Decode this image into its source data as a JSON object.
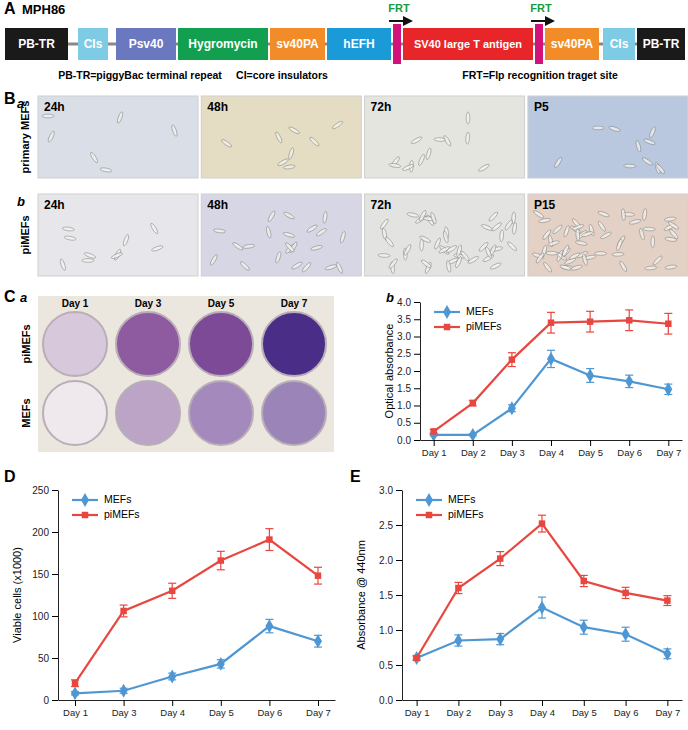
{
  "panel_labels": {
    "A": "A",
    "B": "B",
    "Ba": "a",
    "Bb": "b",
    "C": "C",
    "Ca": "a",
    "Cb": "b",
    "D": "D",
    "E": "E"
  },
  "construct": {
    "name": "MPH86",
    "elements": [
      {
        "type": "box",
        "label": "PB-TR",
        "color": "#1a1a1a"
      },
      {
        "type": "box",
        "label": "CIs",
        "color": "#7ecbe6"
      },
      {
        "type": "box",
        "label": "Psv40",
        "color": "#6a78c0"
      },
      {
        "type": "box",
        "label": "Hygromycin",
        "color": "#12a050"
      },
      {
        "type": "box",
        "label": "sv40PA",
        "color": "#f28c28"
      },
      {
        "type": "box",
        "label": "hEFH",
        "color": "#1a9ad6"
      },
      {
        "type": "site",
        "label": "FRT",
        "color": "#d1127a"
      },
      {
        "type": "box",
        "label": "SV40 large T antigen",
        "color": "#e8262a"
      },
      {
        "type": "site",
        "label": "FRT",
        "color": "#d1127a"
      },
      {
        "type": "box",
        "label": "sv40PA",
        "color": "#f28c28"
      },
      {
        "type": "box",
        "label": "CIs",
        "color": "#7ecbe6"
      },
      {
        "type": "box",
        "label": "PB-TR",
        "color": "#1a1a1a"
      }
    ],
    "notes": [
      "PB-TR=piggyBac terminal repeat",
      "CI=core insulators",
      "FRT=Flp recognition traget site"
    ]
  },
  "micrographs": {
    "rows": [
      {
        "label": "primary MEFs",
        "frames": [
          "24h",
          "48h",
          "72h",
          "P5"
        ],
        "colors": [
          "#d9dee7",
          "#e4ddc4",
          "#e5e5df",
          "#b9c8de"
        ]
      },
      {
        "label": "piMEFs",
        "frames": [
          "24h",
          "48h",
          "72h",
          "P15"
        ],
        "colors": [
          "#e7e7eb",
          "#d7d6e4",
          "#e3e3e1",
          "#e3d1c6"
        ]
      }
    ]
  },
  "plates": {
    "rows": [
      "piMEFs",
      "MEFs"
    ],
    "columns": [
      "Day 1",
      "Day 3",
      "Day 5",
      "Day 7"
    ],
    "colors": [
      [
        "#d8c8dc",
        "#8e5aa0",
        "#7c4a96",
        "#4a2d86"
      ],
      [
        "#efe9ee",
        "#bba4c6",
        "#a48abc",
        "#9a84b8"
      ]
    ]
  },
  "chart_data": [
    {
      "type": "line",
      "categories": [
        "Day 1",
        "Day 2",
        "Day 3",
        "Day 4",
        "Day 5",
        "Day 6",
        "Day 7"
      ],
      "y_label": "Optical absorbance",
      "ylim": [
        0,
        4
      ],
      "yticks": [
        {
          "value": 0,
          "label": "0.0"
        },
        {
          "value": 0.5,
          "label": "0.5"
        },
        {
          "value": 1,
          "label": "1.0"
        },
        {
          "value": 1.5,
          "label": "1.5"
        },
        {
          "value": 2,
          "label": "2.0"
        },
        {
          "value": 2.5,
          "label": "2.5"
        },
        {
          "value": 3,
          "label": "3.0"
        },
        {
          "value": 3.5,
          "label": "3.5"
        },
        {
          "value": 4,
          "label": "4.0"
        }
      ],
      "legend": "top-left",
      "series": [
        {
          "name": "MEFs",
          "color": "#4f97d3",
          "marker": "diamond",
          "values": [
            0.15,
            0.15,
            0.92,
            2.35,
            1.87,
            1.7,
            1.47
          ],
          "errors": [
            0.03,
            0.03,
            0.1,
            0.25,
            0.2,
            0.18,
            0.15
          ]
        },
        {
          "name": "piMEFs",
          "color": "#e8473f",
          "marker": "square",
          "values": [
            0.25,
            1.07,
            2.33,
            3.4,
            3.43,
            3.47,
            3.37
          ],
          "errors": [
            0.05,
            0.08,
            0.2,
            0.3,
            0.3,
            0.3,
            0.3
          ]
        }
      ]
    },
    {
      "type": "line",
      "categories": [
        "Day 1",
        "Day 3",
        "Day 4",
        "Day 5",
        "Day 6",
        "Day 7"
      ],
      "y_label": "Viable cells (x1000)",
      "ylim": [
        0,
        250
      ],
      "yticks": [
        0,
        50,
        100,
        150,
        200,
        250
      ],
      "legend": "top-left",
      "series": [
        {
          "name": "MEFs",
          "color": "#4f97d3",
          "marker": "diamond",
          "values": [
            8,
            11,
            28,
            43,
            88,
            70
          ],
          "errors": [
            2,
            3,
            4,
            5,
            8,
            7
          ]
        },
        {
          "name": "piMEFs",
          "color": "#e8473f",
          "marker": "square",
          "values": [
            20,
            106,
            130,
            166,
            191,
            148
          ],
          "errors": [
            4,
            7,
            9,
            11,
            13,
            10
          ]
        }
      ]
    },
    {
      "type": "line",
      "categories": [
        "Day 1",
        "Day 2",
        "Day 3",
        "Day 4",
        "Day 5",
        "Day 6",
        "Day 7"
      ],
      "y_label": "Absorbance @ 440nm",
      "ylim": [
        0,
        3
      ],
      "yticks": [
        {
          "value": 0,
          "label": "0.0"
        },
        {
          "value": 0.5,
          "label": "0.5"
        },
        {
          "value": 1,
          "label": "1.0"
        },
        {
          "value": 1.5,
          "label": "1.5"
        },
        {
          "value": 2,
          "label": "2.0"
        },
        {
          "value": 2.5,
          "label": "2.5"
        },
        {
          "value": 3,
          "label": "3.0"
        }
      ],
      "legend": "top-left",
      "series": [
        {
          "name": "MEFs",
          "color": "#4f97d3",
          "marker": "diamond",
          "values": [
            0.6,
            0.85,
            0.87,
            1.32,
            1.04,
            0.94,
            0.66
          ],
          "errors": [
            0.03,
            0.08,
            0.08,
            0.15,
            0.1,
            0.1,
            0.07
          ]
        },
        {
          "name": "piMEFs",
          "color": "#e8473f",
          "marker": "square",
          "values": [
            0.6,
            1.6,
            2.02,
            2.52,
            1.7,
            1.53,
            1.42
          ],
          "errors": [
            0.03,
            0.08,
            0.1,
            0.12,
            0.08,
            0.08,
            0.07
          ]
        }
      ]
    }
  ]
}
